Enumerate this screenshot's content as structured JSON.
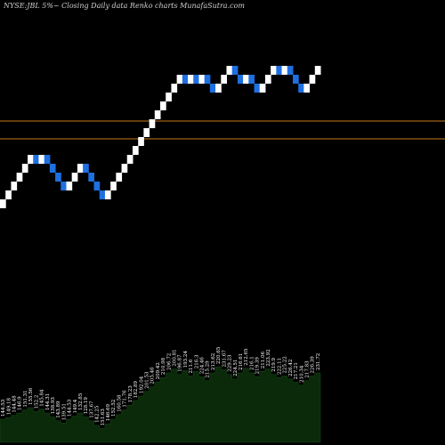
{
  "chart_data": {
    "type": "renko",
    "title": "NYSE:JBL  5%~  Closing Daily data  Renko  charts MunafaSutra.com",
    "colors": {
      "background": "#000000",
      "up_brick": "#ffffff",
      "down_brick": "#1e6fe0",
      "reference_line": "#c8781e",
      "volume_fill": "#0a2a0a"
    },
    "reference_lines": [
      {
        "level": 142.0,
        "color": "#c8781e"
      },
      {
        "level": 132.0,
        "color": "#c8781e"
      }
    ],
    "brick_size_percent": 5,
    "price_range": [
      80,
      180
    ],
    "bricks": [
      {
        "direction": "up",
        "close": 98.0
      },
      {
        "direction": "up",
        "close": 103.0
      },
      {
        "direction": "up",
        "close": 108.0
      },
      {
        "direction": "up",
        "close": 113.0
      },
      {
        "direction": "up",
        "close": 118.0
      },
      {
        "direction": "up",
        "close": 123.0
      },
      {
        "direction": "down",
        "close": 118.0
      },
      {
        "direction": "up",
        "close": 123.0
      },
      {
        "direction": "down",
        "close": 118.0
      },
      {
        "direction": "down",
        "close": 113.0
      },
      {
        "direction": "down",
        "close": 108.0
      },
      {
        "direction": "down",
        "close": 103.0
      },
      {
        "direction": "up",
        "close": 108.0
      },
      {
        "direction": "up",
        "close": 113.0
      },
      {
        "direction": "up",
        "close": 118.0
      },
      {
        "direction": "down",
        "close": 113.0
      },
      {
        "direction": "down",
        "close": 108.0
      },
      {
        "direction": "down",
        "close": 103.0
      },
      {
        "direction": "down",
        "close": 98.0
      },
      {
        "direction": "up",
        "close": 103.0
      },
      {
        "direction": "up",
        "close": 108.0
      },
      {
        "direction": "up",
        "close": 113.0
      },
      {
        "direction": "up",
        "close": 118.0
      },
      {
        "direction": "up",
        "close": 123.0
      },
      {
        "direction": "up",
        "close": 128.0
      },
      {
        "direction": "up",
        "close": 133.0
      },
      {
        "direction": "up",
        "close": 138.0
      },
      {
        "direction": "up",
        "close": 143.0
      },
      {
        "direction": "up",
        "close": 148.0
      },
      {
        "direction": "up",
        "close": 153.0
      },
      {
        "direction": "up",
        "close": 158.0
      },
      {
        "direction": "up",
        "close": 163.0
      },
      {
        "direction": "up",
        "close": 168.0
      },
      {
        "direction": "down",
        "close": 163.0
      },
      {
        "direction": "up",
        "close": 168.0
      },
      {
        "direction": "down",
        "close": 163.0
      },
      {
        "direction": "up",
        "close": 168.0
      },
      {
        "direction": "down",
        "close": 163.0
      },
      {
        "direction": "down",
        "close": 158.0
      },
      {
        "direction": "up",
        "close": 163.0
      },
      {
        "direction": "up",
        "close": 168.0
      },
      {
        "direction": "up",
        "close": 173.0
      },
      {
        "direction": "down",
        "close": 168.0
      },
      {
        "direction": "down",
        "close": 163.0
      },
      {
        "direction": "up",
        "close": 168.0
      },
      {
        "direction": "down",
        "close": 163.0
      },
      {
        "direction": "down",
        "close": 158.0
      },
      {
        "direction": "up",
        "close": 163.0
      },
      {
        "direction": "up",
        "close": 168.0
      },
      {
        "direction": "up",
        "close": 173.0
      },
      {
        "direction": "down",
        "close": 168.0
      },
      {
        "direction": "up",
        "close": 173.0
      },
      {
        "direction": "down",
        "close": 168.0
      },
      {
        "direction": "down",
        "close": 163.0
      },
      {
        "direction": "down",
        "close": 158.0
      },
      {
        "direction": "up",
        "close": 163.0
      },
      {
        "direction": "up",
        "close": 168.0
      },
      {
        "direction": "up",
        "close": 173.0
      }
    ],
    "price_labels": [
      "144.53",
      "149.18",
      "144.48",
      "146.9",
      "151.31",
      "155.56",
      "152.2",
      "145.84",
      "144.31",
      "138.93",
      "143.89",
      "139.51",
      "144.53",
      "149.4",
      "132.85",
      "128.19",
      "137.67",
      "142.25",
      "151.63",
      "146.69",
      "152.52",
      "160.58",
      "171.76",
      "178.23",
      "182.89",
      "192.04",
      "201.53",
      "205.46",
      "209.42",
      "210.98",
      "206.72",
      "200.81",
      "196.87",
      "193.24",
      "211.6",
      "216.3",
      "224.46",
      "215.29",
      "213.62",
      "220.65",
      "231.67",
      "229.23",
      "224.51",
      "216.61",
      "212.65",
      "216.1",
      "219.39",
      "211.06",
      "223.92",
      "219.9",
      "222.11",
      "225.22",
      "226.42",
      "217.21",
      "210.34",
      "217.83",
      "226.39",
      "231.72"
    ],
    "volume_levels": [
      0.3,
      0.32,
      0.35,
      0.38,
      0.42,
      0.45,
      0.4,
      0.43,
      0.38,
      0.33,
      0.28,
      0.25,
      0.3,
      0.34,
      0.38,
      0.33,
      0.28,
      0.22,
      0.18,
      0.24,
      0.3,
      0.36,
      0.42,
      0.48,
      0.54,
      0.6,
      0.66,
      0.72,
      0.78,
      0.84,
      0.9,
      0.95,
      0.88,
      0.93,
      0.86,
      0.92,
      0.85,
      0.8,
      0.9,
      0.98,
      0.94,
      0.88,
      0.82,
      0.9,
      0.96,
      0.9,
      0.85,
      0.92,
      0.95,
      0.88,
      0.84,
      0.86,
      0.82,
      0.78,
      0.74,
      0.8,
      0.86,
      0.9
    ]
  }
}
